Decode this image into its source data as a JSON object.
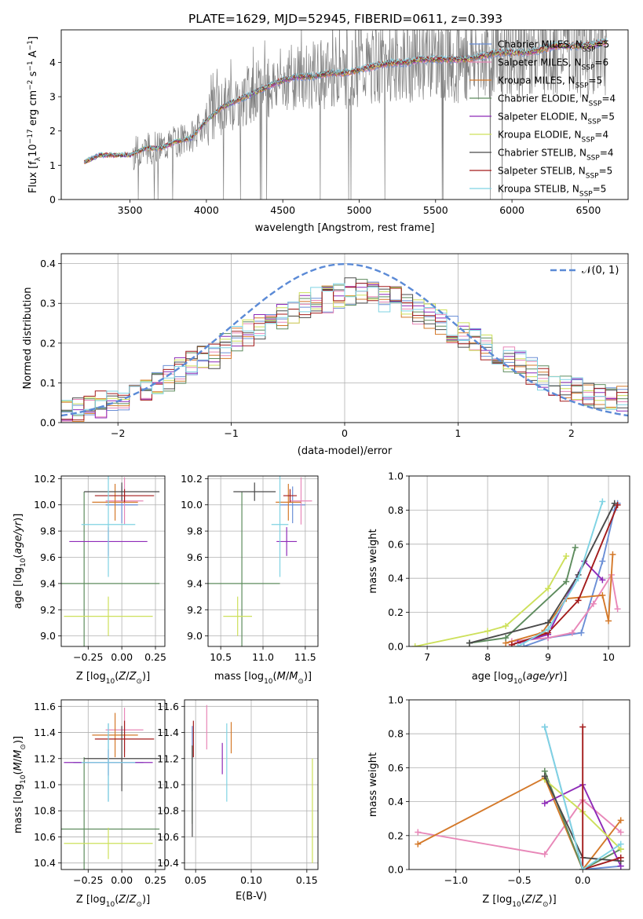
{
  "figure": {
    "title": "PLATE=1629, MJD=52945, FIBERID=0611, z=0.393"
  },
  "models": [
    {
      "label": "Chabrier MILES, N",
      "sub": "SSP",
      "suffix": "=5",
      "color": "#6b8fd6"
    },
    {
      "label": "Salpeter MILES, N",
      "sub": "SSP",
      "suffix": "=6",
      "color": "#e887b8"
    },
    {
      "label": "Kroupa MILES, N",
      "sub": "SSP",
      "suffix": "=5",
      "color": "#d4792a"
    },
    {
      "label": "Chabrier ELODIE, N",
      "sub": "SSP",
      "suffix": "=4",
      "color": "#5e8c5e"
    },
    {
      "label": "Salpeter ELODIE, N",
      "sub": "SSP",
      "suffix": "=5",
      "color": "#8e2bb8"
    },
    {
      "label": "Kroupa ELODIE, N",
      "sub": "SSP",
      "suffix": "=4",
      "color": "#cde05a"
    },
    {
      "label": "Chabrier STELIB, N",
      "sub": "SSP",
      "suffix": "=4",
      "color": "#4a4a4a"
    },
    {
      "label": "Salpeter STELIB, N",
      "sub": "SSP",
      "suffix": "=5",
      "color": "#a31b1b"
    },
    {
      "label": "Kroupa STELIB, N",
      "sub": "SSP",
      "suffix": "=5",
      "color": "#7fd3e3"
    }
  ],
  "chart_data": [
    {
      "id": "spectrum",
      "type": "line",
      "xlabel": "wavelength [Angstrom, rest frame]",
      "ylabel_parts": [
        "Flux [f",
        "λ",
        "10",
        "−17",
        " erg cm",
        "−2",
        " s",
        "−1",
        " A",
        "−1",
        "]"
      ],
      "xlim": [
        3050,
        6760
      ],
      "ylim": [
        0,
        4.95
      ],
      "xticks": [
        3500,
        4000,
        4500,
        5000,
        5500,
        6000,
        6500
      ],
      "yticks": [
        0,
        1,
        2,
        3,
        4
      ],
      "series_envelope": {
        "x": [
          3200,
          3300,
          3400,
          3500,
          3600,
          3700,
          3800,
          3900,
          4000,
          4100,
          4200,
          4300,
          4400,
          4500,
          4600,
          4700,
          4800,
          4900,
          5000,
          5100,
          5200,
          5300,
          5400,
          5500,
          5600,
          5700,
          5800,
          5900,
          6000,
          6100,
          6200,
          6300,
          6400,
          6500,
          6600
        ],
        "y": [
          1.1,
          1.3,
          1.3,
          1.3,
          1.5,
          1.5,
          1.7,
          1.8,
          2.3,
          2.7,
          2.9,
          3.1,
          3.3,
          3.5,
          3.6,
          3.6,
          3.7,
          3.7,
          3.8,
          3.9,
          4.0,
          4.0,
          4.1,
          4.1,
          4.1,
          4.1,
          4.2,
          4.3,
          4.3,
          4.3,
          4.4,
          4.5,
          4.5,
          4.5,
          4.6
        ]
      },
      "data_x_range": [
        3200,
        6620
      ],
      "legend_loc": "upper right"
    },
    {
      "id": "residuals",
      "type": "histogram",
      "xlabel": "(data-model)/error",
      "ylabel": "Normed distribution",
      "xlim": [
        -2.5,
        2.5
      ],
      "ylim": [
        0,
        0.425
      ],
      "xticks": [
        -2,
        -1,
        0,
        1,
        2
      ],
      "yticks": [
        0,
        0.1,
        0.2,
        0.3,
        0.4
      ],
      "grid": true,
      "reference_curve": {
        "name": "𝒩(0, 1)",
        "mean": 0,
        "sigma": 1
      },
      "bin_width": 0.1,
      "bin_start": -2.5,
      "reference_values": [
        0.03,
        0.035,
        0.04,
        0.045,
        0.055,
        0.065,
        0.075,
        0.08,
        0.1,
        0.11,
        0.13,
        0.145,
        0.16,
        0.17,
        0.19,
        0.21,
        0.225,
        0.24,
        0.255,
        0.265,
        0.28,
        0.295,
        0.31,
        0.31,
        0.32,
        0.33,
        0.33,
        0.32,
        0.31,
        0.31,
        0.295,
        0.28,
        0.265,
        0.25,
        0.235,
        0.22,
        0.205,
        0.19,
        0.17,
        0.16,
        0.15,
        0.13,
        0.115,
        0.1,
        0.085,
        0.08,
        0.075,
        0.07,
        0.065,
        0.06
      ],
      "legend_loc": "upper right"
    },
    {
      "id": "age-vs-Z",
      "type": "errorbar",
      "xlabel": "Z [log10(Z/Z⊙)]",
      "ylabel": "age [log10(age/yr)]",
      "xlim": [
        -0.45,
        0.32
      ],
      "ylim": [
        8.92,
        10.22
      ],
      "xticks": [
        -0.25,
        0.0,
        0.25
      ],
      "xticklabels": [
        "−0.25",
        "0.00",
        "0.25"
      ],
      "yticks": [
        9.0,
        9.2,
        9.4,
        9.6,
        9.8,
        10.0,
        10.2
      ],
      "points": [
        {
          "x": 0.0,
          "y": 10.0,
          "xerr": 0.12,
          "yerr": 0.14
        },
        {
          "x": 0.02,
          "y": 10.03,
          "xerr": 0.14,
          "yerr": 0.18
        },
        {
          "x": -0.05,
          "y": 10.02,
          "xerr": 0.17,
          "yerr": 0.14
        },
        {
          "x": -0.28,
          "y": 9.4,
          "xerr": 0.56,
          "yerr": 0.7
        },
        {
          "x": -0.1,
          "y": 9.72,
          "xerr": 0.29,
          "yerr": 0.11
        },
        {
          "x": -0.1,
          "y": 9.15,
          "xerr": 0.33,
          "yerr": 0.15
        },
        {
          "x": 0.0,
          "y": 10.1,
          "xerr": 0.28,
          "yerr": 0.07
        },
        {
          "x": 0.02,
          "y": 10.07,
          "xerr": 0.22,
          "yerr": 0.05
        },
        {
          "x": -0.1,
          "y": 9.85,
          "xerr": 0.2,
          "yerr": 0.4
        }
      ]
    },
    {
      "id": "age-vs-mass",
      "type": "errorbar",
      "xlabel": "mass [log10(M/M⊙)]",
      "ylabel": "",
      "xlim": [
        10.35,
        11.65
      ],
      "ylim": [
        8.92,
        10.22
      ],
      "xticks": [
        10.5,
        11.0,
        11.5
      ],
      "xticklabels": [
        "10.5",
        "11.0",
        "11.5"
      ],
      "yticks": [
        9.0,
        9.2,
        9.4,
        9.6,
        9.8,
        10.0,
        10.2
      ],
      "points": [
        {
          "x": 11.35,
          "y": 10.0,
          "xerr": 0.15,
          "yerr": 0.14
        },
        {
          "x": 11.45,
          "y": 10.03,
          "xerr": 0.13,
          "yerr": 0.18
        },
        {
          "x": 11.3,
          "y": 10.02,
          "xerr": 0.15,
          "yerr": 0.14
        },
        {
          "x": 10.75,
          "y": 9.4,
          "xerr": 0.45,
          "yerr": 0.7
        },
        {
          "x": 11.28,
          "y": 9.72,
          "xerr": 0.12,
          "yerr": 0.11
        },
        {
          "x": 10.7,
          "y": 9.15,
          "xerr": 0.17,
          "yerr": 0.15
        },
        {
          "x": 10.9,
          "y": 10.1,
          "xerr": 0.25,
          "yerr": 0.07
        },
        {
          "x": 11.32,
          "y": 10.07,
          "xerr": 0.08,
          "yerr": 0.05
        },
        {
          "x": 11.2,
          "y": 9.85,
          "xerr": 0.1,
          "yerr": 0.4
        }
      ]
    },
    {
      "id": "weight-vs-age",
      "type": "line",
      "xlabel": "age [log10(age/yr)]",
      "ylabel": "mass weight",
      "xlim": [
        6.7,
        10.35
      ],
      "ylim": [
        0,
        1.0
      ],
      "xticks": [
        7,
        8,
        9,
        10
      ],
      "yticks": [
        0,
        0.2,
        0.4,
        0.6,
        0.8,
        1.0
      ],
      "grid": true,
      "series": [
        {
          "x": [
            8.6,
            9.0,
            9.55,
            9.9,
            10.1,
            10.15
          ],
          "y": [
            0.0,
            0.05,
            0.08,
            0.5,
            0.8,
            0.84
          ]
        },
        {
          "x": [
            8.4,
            9.0,
            9.4,
            9.75,
            10.05,
            10.15
          ],
          "y": [
            0.03,
            0.05,
            0.08,
            0.25,
            0.42,
            0.22
          ]
        },
        {
          "x": [
            8.3,
            8.9,
            9.3,
            9.9,
            10.0,
            10.07
          ],
          "y": [
            0.02,
            0.08,
            0.28,
            0.3,
            0.15,
            0.54
          ]
        },
        {
          "x": [
            7.7,
            8.3,
            9.3,
            9.45
          ],
          "y": [
            0.02,
            0.05,
            0.38,
            0.58
          ]
        },
        {
          "x": [
            8.5,
            9.0,
            9.6,
            9.9
          ],
          "y": [
            0.02,
            0.07,
            0.5,
            0.39
          ]
        },
        {
          "x": [
            6.8,
            8.0,
            8.3,
            9.0,
            9.3
          ],
          "y": [
            0.0,
            0.09,
            0.12,
            0.34,
            0.53
          ]
        },
        {
          "x": [
            7.7,
            9.0,
            9.5,
            10.1
          ],
          "y": [
            0.02,
            0.14,
            0.42,
            0.84
          ]
        },
        {
          "x": [
            8.4,
            9.0,
            9.5,
            10.15
          ],
          "y": [
            0.01,
            0.08,
            0.27,
            0.83
          ]
        },
        {
          "x": [
            8.5,
            9.0,
            9.5,
            9.9
          ],
          "y": [
            0.0,
            0.1,
            0.4,
            0.85
          ]
        }
      ]
    },
    {
      "id": "mass-vs-Z",
      "type": "errorbar",
      "xlabel": "Z [log10(Z/Z⊙)]",
      "ylabel": "mass [log10(M/M⊙)]",
      "xlim": [
        -0.45,
        0.32
      ],
      "ylim": [
        10.35,
        11.65
      ],
      "xticks": [
        -0.25,
        0.0,
        0.25
      ],
      "xticklabels": [
        "−0.25",
        "0.00",
        "0.25"
      ],
      "yticks": [
        10.4,
        10.6,
        10.8,
        11.0,
        11.2,
        11.4,
        11.6
      ],
      "points": [
        {
          "x": -0.1,
          "y": 11.17,
          "xerr": 0.26,
          "yerr": 0.3
        },
        {
          "x": 0.02,
          "y": 11.42,
          "xerr": 0.14,
          "yerr": 0.17
        },
        {
          "x": -0.05,
          "y": 11.38,
          "xerr": 0.17,
          "yerr": 0.17
        },
        {
          "x": -0.28,
          "y": 10.66,
          "xerr": 0.56,
          "yerr": 0.55
        },
        {
          "x": -0.1,
          "y": 11.17,
          "xerr": 0.33,
          "yerr": 0.1
        },
        {
          "x": -0.1,
          "y": 10.55,
          "xerr": 0.33,
          "yerr": 0.12
        },
        {
          "x": 0.0,
          "y": 11.2,
          "xerr": 0.28,
          "yerr": 0.25
        },
        {
          "x": 0.02,
          "y": 11.35,
          "xerr": 0.22,
          "yerr": 0.14
        },
        {
          "x": -0.1,
          "y": 11.17,
          "xerr": 0.2,
          "yerr": 0.3
        }
      ]
    },
    {
      "id": "mass-vs-EBV",
      "type": "errorbar",
      "xlabel": "E(B-V)",
      "ylabel": "",
      "xlim": [
        0.04,
        0.16
      ],
      "ylim": [
        10.35,
        11.65
      ],
      "xticks": [
        0.05,
        0.1,
        0.15
      ],
      "xticklabels": [
        "0.05",
        "0.10",
        "0.15"
      ],
      "yticks": [
        10.4,
        10.6,
        10.8,
        11.0,
        11.2,
        11.4,
        11.6
      ],
      "points": [
        {
          "x": 0.047,
          "y": 11.2,
          "xerr": 0,
          "yerr": 0.25
        },
        {
          "x": 0.06,
          "y": 11.44,
          "xerr": 0,
          "yerr": 0.17
        },
        {
          "x": 0.082,
          "y": 11.36,
          "xerr": 0,
          "yerr": 0.12
        },
        {
          "x": 0.047,
          "y": 11.0,
          "xerr": 0,
          "yerr": 0.3
        },
        {
          "x": 0.074,
          "y": 11.2,
          "xerr": 0,
          "yerr": 0.12
        },
        {
          "x": 0.155,
          "y": 10.8,
          "xerr": 0,
          "yerr": 0.4
        },
        {
          "x": 0.047,
          "y": 10.95,
          "xerr": 0,
          "yerr": 0.35
        },
        {
          "x": 0.048,
          "y": 11.35,
          "xerr": 0,
          "yerr": 0.14
        },
        {
          "x": 0.078,
          "y": 11.17,
          "xerr": 0,
          "yerr": 0.3
        }
      ]
    },
    {
      "id": "weight-vs-Z",
      "type": "line",
      "xlabel": "Z [log10(Z/Z⊙)]",
      "ylabel": "mass weight",
      "xlim": [
        -1.37,
        0.37
      ],
      "ylim": [
        0,
        1.0
      ],
      "xticks": [
        -1.0,
        -0.5,
        0.0
      ],
      "xticklabels": [
        "−1.0",
        "−0.5",
        "0.0"
      ],
      "yticks": [
        0,
        0.2,
        0.4,
        0.6,
        0.8,
        1.0
      ],
      "grid": true,
      "series": [
        {
          "x": [
            -0.3,
            0.0,
            0.3
          ],
          "y": [
            0.84,
            0.0,
            0.02
          ]
        },
        {
          "x": [
            -1.3,
            -0.3,
            0.0,
            0.3
          ],
          "y": [
            0.22,
            0.09,
            0.41,
            0.22
          ]
        },
        {
          "x": [
            -1.3,
            -0.3,
            0.0,
            0.3
          ],
          "y": [
            0.15,
            0.54,
            0.0,
            0.29
          ]
        },
        {
          "x": [
            -0.3,
            0.0,
            0.3
          ],
          "y": [
            0.58,
            0.0,
            0.12
          ]
        },
        {
          "x": [
            -0.3,
            0.0,
            0.3
          ],
          "y": [
            0.39,
            0.5,
            0.02
          ]
        },
        {
          "x": [
            -0.3,
            0.0,
            0.3
          ],
          "y": [
            0.53,
            0.34,
            0.12
          ]
        },
        {
          "x": [
            -0.3,
            0.0,
            0.3
          ],
          "y": [
            0.55,
            0.07,
            0.05
          ]
        },
        {
          "x": [
            0.0,
            0.0,
            0.3
          ],
          "y": [
            0.84,
            0.0,
            0.07
          ]
        },
        {
          "x": [
            -0.3,
            0.0,
            0.3
          ],
          "y": [
            0.84,
            0.0,
            0.15
          ]
        }
      ]
    }
  ]
}
